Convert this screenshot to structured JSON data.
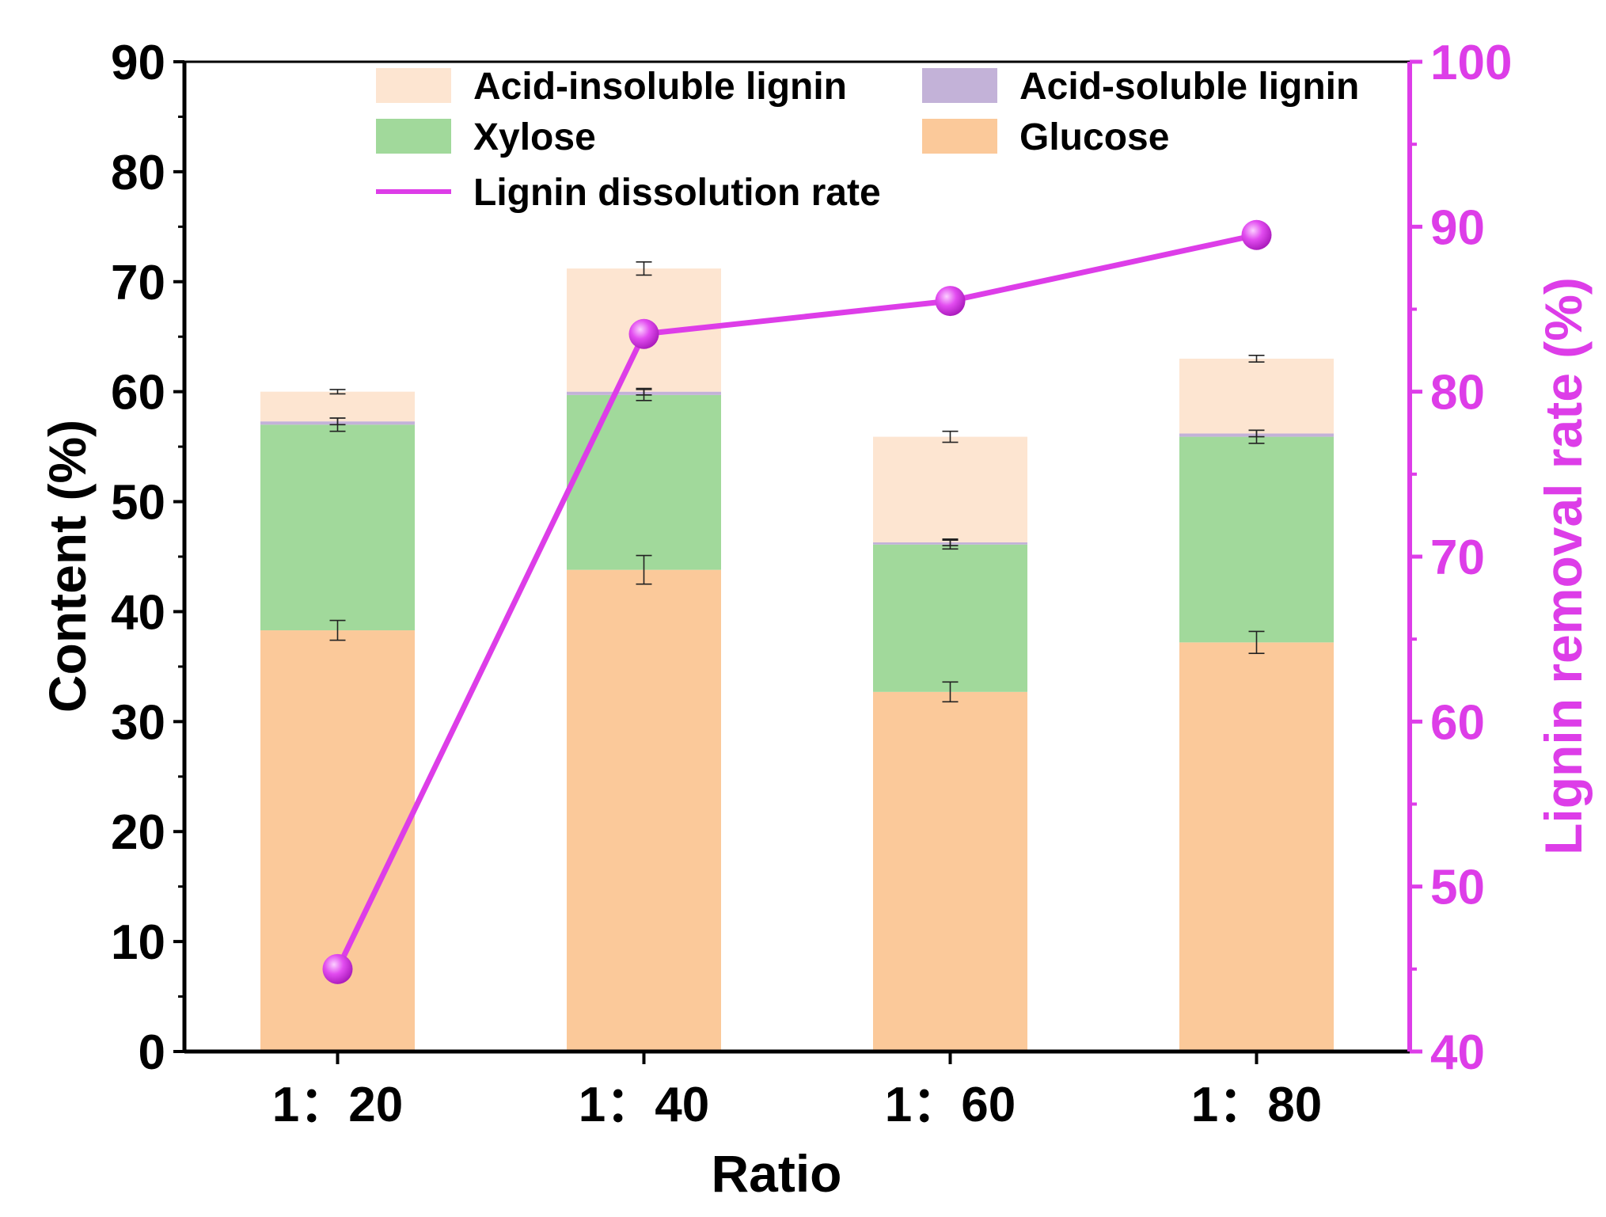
{
  "chart_data": {
    "type": "bar",
    "categories": [
      "1：20",
      "1：40",
      "1：60",
      "1：80"
    ],
    "xlabel": "Ratio",
    "ylabel": "Content (%)",
    "y2label": "Lignin removal rate (%)",
    "ylim": [
      0,
      90
    ],
    "y2lim": [
      40,
      100
    ],
    "yticks": [
      "0",
      "10",
      "20",
      "30",
      "40",
      "50",
      "60",
      "70",
      "80",
      "90"
    ],
    "y2ticks": [
      "40",
      "50",
      "60",
      "70",
      "80",
      "90",
      "100"
    ],
    "stacked_series": [
      {
        "name": "Glucose",
        "color": "#fbc99a",
        "values": [
          38.3,
          43.8,
          32.7,
          37.2
        ],
        "errors": [
          0.9,
          1.3,
          0.9,
          1.0
        ]
      },
      {
        "name": "Xylose",
        "color": "#a1d99b",
        "values": [
          18.7,
          15.9,
          13.4,
          18.7
        ],
        "errors": [
          0.6,
          0.5,
          0.4,
          0.6
        ]
      },
      {
        "name": "Acid-soluble lignin",
        "color": "#c3b2d8",
        "values": [
          0.3,
          0.3,
          0.2,
          0.3
        ],
        "errors": [
          0.3,
          0.3,
          0.3,
          0.3
        ]
      },
      {
        "name": "Acid-insoluble lignin",
        "color": "#fde5d1",
        "values": [
          2.7,
          11.2,
          9.6,
          6.8
        ],
        "errors": [
          0.2,
          0.6,
          0.5,
          0.3
        ]
      }
    ],
    "line_series": {
      "name": "Lignin dissolution rate",
      "color": "#dd3de8",
      "axis": "right",
      "values": [
        45.0,
        83.5,
        85.5,
        89.5
      ]
    },
    "legend": {
      "placement": "top",
      "entries": [
        "Acid-insoluble lignin",
        "Acid-soluble lignin",
        "Xylose",
        "Glucose",
        "Lignin dissolution rate"
      ]
    },
    "grid": false
  }
}
